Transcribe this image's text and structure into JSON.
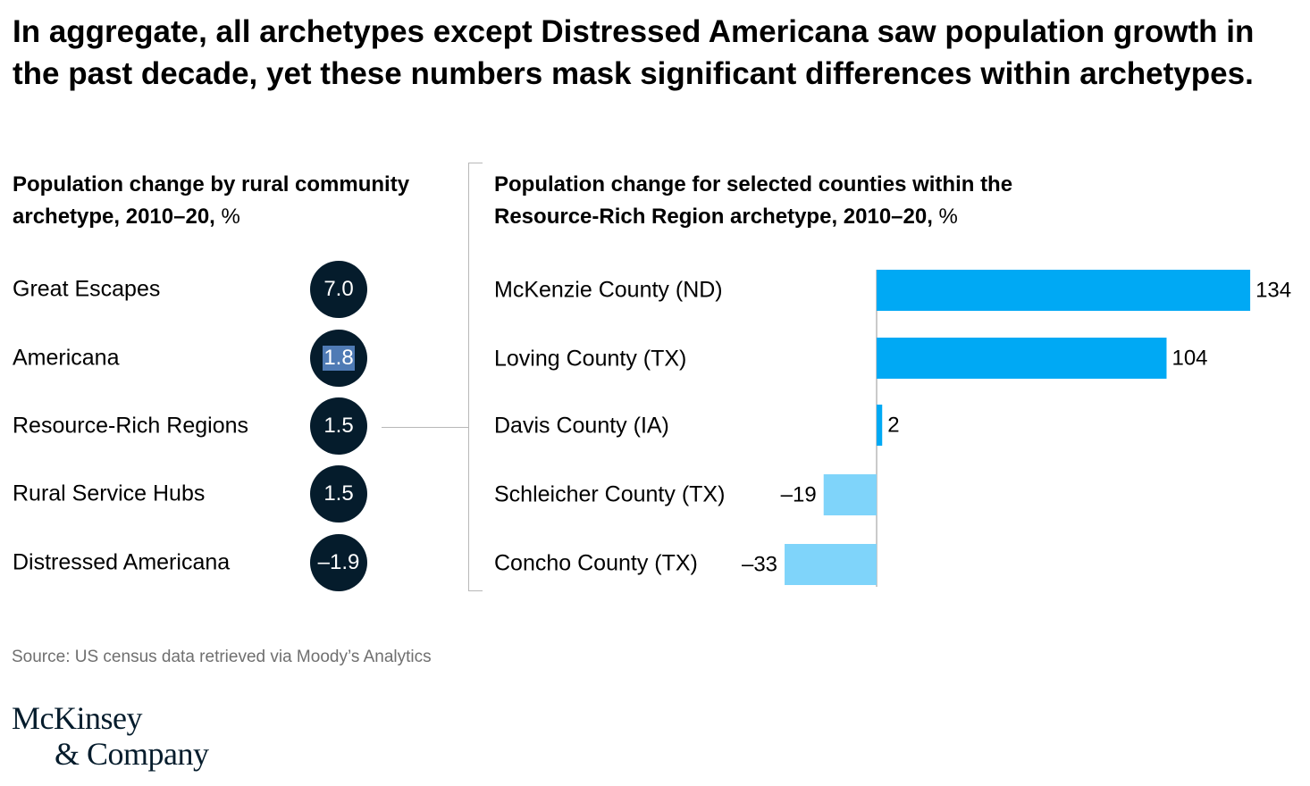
{
  "title": "In aggregate, all archetypes except Distressed Americana saw population growth in the past decade, yet these numbers mask significant differences within archetypes.",
  "left_subtitle": {
    "bold": "Population change by rural community archetype, 2010–20,",
    "unit": " %"
  },
  "right_subtitle": {
    "bold": "Population change for selected counties within the Resource-Rich Region archetype, 2010–20,",
    "unit": " %"
  },
  "archetypes": [
    {
      "label": "Great Escapes",
      "value": "7.0"
    },
    {
      "label": "Americana",
      "value": "1.8"
    },
    {
      "label": "Resource-Rich Regions",
      "value": "1.5"
    },
    {
      "label": "Rural Service Hubs",
      "value": "1.5"
    },
    {
      "label": "Distressed Americana",
      "value": "–1.9"
    }
  ],
  "colors": {
    "dark": "#051c2c",
    "positive": "#00a9f4",
    "negative": "#7fd4fa",
    "axis": "#b8b8b8"
  },
  "chart_data": [
    {
      "type": "table",
      "title": "Population change by rural community archetype, 2010–20, %",
      "categories": [
        "Great Escapes",
        "Americana",
        "Resource-Rich Regions",
        "Rural Service Hubs",
        "Distressed Americana"
      ],
      "values": [
        7.0,
        1.8,
        1.5,
        1.5,
        -1.9
      ]
    },
    {
      "type": "bar",
      "orientation": "horizontal",
      "title": "Population change for selected counties within the Resource-Rich Region archetype, 2010–20, %",
      "categories": [
        "McKenzie County (ND)",
        "Loving County (TX)",
        "Davis County (IA)",
        "Schleicher County (TX)",
        "Concho County (TX)"
      ],
      "values": [
        134,
        104,
        2,
        -19,
        -33
      ],
      "value_labels": [
        "134",
        "104",
        "2",
        "–19",
        "–33"
      ],
      "xlim": [
        -33,
        134
      ]
    }
  ],
  "source": "Source: US census data retrieved via Moody’s Analytics",
  "logo": {
    "line1": "McKinsey",
    "line2": "& Company"
  }
}
